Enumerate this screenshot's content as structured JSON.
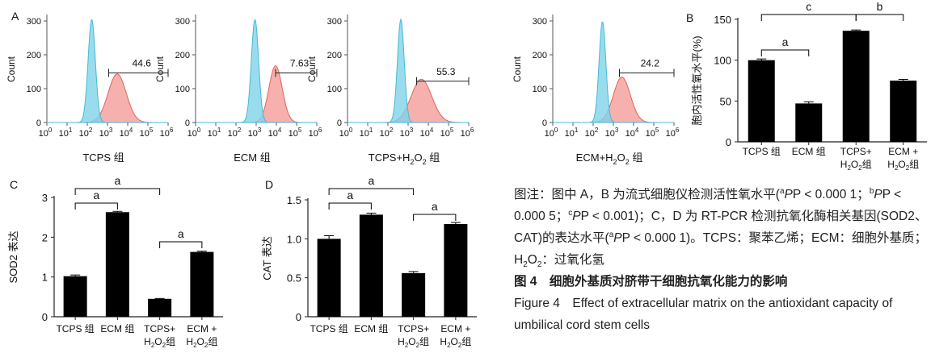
{
  "panel_letters": {
    "a": "A",
    "b": "B",
    "c": "C",
    "d": "D"
  },
  "histograms": [
    {
      "label": "TCPS 组",
      "gate_value": "44.6"
    },
    {
      "label": "ECM 组",
      "gate_value": "7.63"
    },
    {
      "label_main": "TCPS+H",
      "label_sub": "2",
      "label_tail": "O",
      "label_sub2": "2",
      "label_end": " 组",
      "gate_value": "55.3"
    },
    {
      "label_main": "ECM+H",
      "label_sub": "2",
      "label_tail": "O",
      "label_sub2": "2",
      "label_end": " 组",
      "gate_value": "24.2"
    }
  ],
  "hist_axes": {
    "ylabel": "Count",
    "yticks": [
      "0",
      "100",
      "200",
      "300"
    ],
    "xticks_base": "10",
    "xticks_exp": [
      "0",
      "1",
      "2",
      "3",
      "4",
      "5",
      "6"
    ]
  },
  "chart_data": [
    {
      "type": "bar",
      "panel": "B",
      "ylabel": "胞内活性氧水平(%)",
      "categories": [
        "TCPS 组",
        "ECM 组",
        "TCPS+H2O2组",
        "ECM + H2O2组"
      ],
      "values": [
        100,
        47,
        136,
        75
      ],
      "errors": [
        1.5,
        2,
        1,
        1.5
      ],
      "ylim": [
        0,
        150
      ],
      "yticks": [
        0,
        50,
        100,
        150
      ],
      "brackets": [
        {
          "from": 0,
          "to": 1,
          "label": "a"
        },
        {
          "from": 0,
          "to": 2,
          "label": "c"
        },
        {
          "from": 2,
          "to": 3,
          "label": "b"
        }
      ]
    },
    {
      "type": "bar",
      "panel": "C",
      "ylabel": "SOD2 表达",
      "categories": [
        "TCPS 组",
        "ECM 组",
        "TCPS+H2O2组",
        "ECM + H2O2组"
      ],
      "values": [
        1.02,
        2.63,
        0.45,
        1.63
      ],
      "errors": [
        0.03,
        0.02,
        0.01,
        0.02
      ],
      "ylim": [
        0,
        3
      ],
      "yticks": [
        0,
        1,
        2,
        3
      ],
      "brackets": [
        {
          "from": 0,
          "to": 1,
          "label": "a"
        },
        {
          "from": 0,
          "to": 2,
          "label": "a"
        },
        {
          "from": 2,
          "to": 3,
          "label": "a"
        }
      ]
    },
    {
      "type": "bar",
      "panel": "D",
      "ylabel": "CAT 表达",
      "categories": [
        "TCPS 组",
        "ECM 组",
        "TCPS+H2O2组",
        "ECM + H2O2组"
      ],
      "values": [
        1.0,
        1.31,
        0.56,
        1.19
      ],
      "errors": [
        0.04,
        0.02,
        0.02,
        0.02
      ],
      "ylim": [
        0,
        1.5
      ],
      "yticks": [
        "0",
        "0.5",
        "1.0",
        "1.5"
      ],
      "brackets": [
        {
          "from": 0,
          "to": 1,
          "label": "a"
        },
        {
          "from": 0,
          "to": 2,
          "label": "a"
        },
        {
          "from": 2,
          "to": 3,
          "label": "a"
        }
      ]
    }
  ],
  "bar_cat_labels": [
    {
      "l1": "TCPS 组"
    },
    {
      "l1": "ECM 组"
    },
    {
      "l1": "TCPS+",
      "l2": "H",
      "l2sub": "2",
      "l2b": "O",
      "l2sub2": "2",
      "l2c": "组"
    },
    {
      "l1": "ECM +",
      "l2": "H",
      "l2sub": "2",
      "l2b": "O",
      "l2sub2": "2",
      "l2c": "组"
    }
  ],
  "caption": {
    "note_prefix": "图注：图中 A，B 为流式细胞仪检测活性氧水平(",
    "sig1_sup": "a",
    "sig1": "P < 0.000 1；",
    "sig2_sup": "b",
    "sig2": "P < 0.000 5；",
    "sig3_sup": "c",
    "sig3": "P < 0.001)；C，D 为 RT-PCR 检测抗氧化酶相关基因(SOD2、CAT)的表达水平(",
    "sig4_sup": "a",
    "sig4": "P < 0.000 1)。TCPS：聚苯乙烯；ECM：细胞外基质；H",
    "h2o2_sub": "2",
    "h2o2_mid": "O",
    "h2o2_sub2": "2",
    "note_end": "：过氧化氢",
    "p_letter": "P",
    "cn_title": "图 4　细胞外基质对脐带干细胞抗氧化能力的影响",
    "en_title": "Figure 4　Effect of extracellular matrix on the antioxidant capacity of umbilical cord stem cells"
  },
  "colors": {
    "blue_fill": "#7fd3e8",
    "blue_line": "#45b9d8",
    "red_fill": "#f4a3a0",
    "red_line": "#e2625c",
    "bar": "#000000"
  }
}
